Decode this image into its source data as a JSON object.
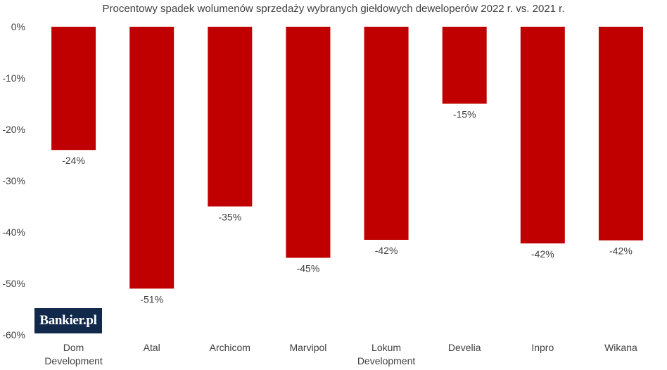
{
  "chart_data": {
    "type": "bar",
    "title": "Procentowy spadek wolumenów sprzedaży wybranych giełdowych deweloperów 2022 r. vs. 2021 r.",
    "categories": [
      [
        "Dom",
        "Development"
      ],
      [
        "Atal"
      ],
      [
        "Archicom"
      ],
      [
        "Marvipol"
      ],
      [
        "Lokum",
        "Development"
      ],
      [
        "Develia"
      ],
      [
        "Inpro"
      ],
      [
        "Wikana"
      ]
    ],
    "values": [
      -24,
      -51,
      -35,
      -45,
      -41.5,
      -15,
      -42.2,
      -41.6
    ],
    "data_labels": [
      "-24%",
      "-51%",
      "-35%",
      "-45%",
      "-42%",
      "-15%",
      "-42%",
      "-42%"
    ],
    "y_ticks": [
      0,
      -10,
      -20,
      -30,
      -40,
      -50,
      -60
    ],
    "y_tick_labels": [
      "0%",
      "-10%",
      "-20%",
      "-30%",
      "-40%",
      "-50%",
      "-60%"
    ],
    "ylim": [
      -60,
      0
    ],
    "bar_color": "#c00000",
    "grid": false,
    "legend": "none"
  },
  "logo": {
    "text": "Bankier.pl",
    "background": "#13294b"
  }
}
